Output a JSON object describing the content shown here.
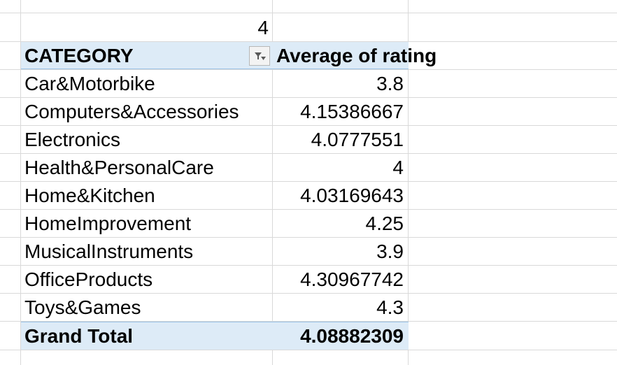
{
  "sheet": {
    "cell_above": "4"
  },
  "pivot": {
    "header": {
      "row_label": "CATEGORY",
      "value_label": "Average of rating"
    },
    "rows": [
      {
        "category": "Car&Motorbike",
        "value": "3.8"
      },
      {
        "category": "Computers&Accessories",
        "value": "4.15386667"
      },
      {
        "category": "Electronics",
        "value": "4.0777551"
      },
      {
        "category": "Health&PersonalCare",
        "value": "4"
      },
      {
        "category": "Home&Kitchen",
        "value": "4.03169643"
      },
      {
        "category": "HomeImprovement",
        "value": "4.25"
      },
      {
        "category": "MusicalInstruments",
        "value": "3.9"
      },
      {
        "category": "OfficeProducts",
        "value": "4.30967742"
      },
      {
        "category": "Toys&Games",
        "value": "4.3"
      }
    ],
    "total": {
      "label": "Grand Total",
      "value": "4.08882309"
    }
  },
  "icons": {
    "filter_button": "filter-sort-icon"
  },
  "colors": {
    "header_fill": "#ddebf7",
    "header_border": "#9bc2e6",
    "gridline": "#d9d9d9"
  }
}
